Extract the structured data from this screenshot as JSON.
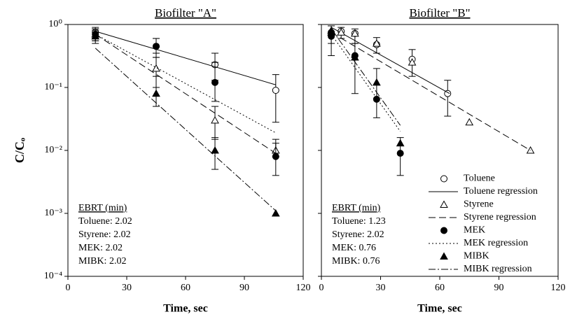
{
  "chart_data": [
    {
      "type": "scatter",
      "title": "Biofilter \"A\"",
      "xlabel": "Time, sec",
      "ylabel": "C/Cₒ",
      "xlim": [
        0,
        120
      ],
      "xticks": [
        0,
        30,
        60,
        90,
        120
      ],
      "ylim": [
        0.0001,
        1
      ],
      "log_y": true,
      "yticks": [
        {
          "value": 1,
          "label": "10⁰"
        },
        {
          "value": 0.1,
          "label": "10⁻¹"
        },
        {
          "value": 0.01,
          "label": "10⁻²"
        },
        {
          "value": 0.001,
          "label": "10⁻³"
        },
        {
          "value": 0.0001,
          "label": "10⁻⁴"
        }
      ],
      "series": [
        {
          "marker": "open-circle",
          "color": "#000000",
          "x": [
            14,
            45,
            75,
            106
          ],
          "values": [
            0.75,
            0.45,
            0.23,
            0.09
          ],
          "err_low": [
            0.6,
            0.3,
            0.13,
            0.028
          ],
          "err_high": [
            0.9,
            0.6,
            0.35,
            0.16
          ]
        },
        {
          "line": "solid",
          "color": "#000000",
          "x": [
            14,
            106
          ],
          "values": [
            0.78,
            0.11
          ]
        },
        {
          "marker": "open-triangle",
          "color": "#000000",
          "x": [
            14,
            45,
            75,
            106
          ],
          "values": [
            0.7,
            0.2,
            0.03,
            0.01
          ],
          "err_low": [
            0.55,
            0.1,
            0.015,
            0.008
          ],
          "err_high": [
            0.85,
            0.35,
            0.05,
            0.013
          ]
        },
        {
          "line": "dashed",
          "color": "#000000",
          "x": [
            14,
            106
          ],
          "values": [
            0.7,
            0.009
          ]
        },
        {
          "marker": "filled-circle",
          "color": "#000000",
          "x": [
            14,
            45,
            75,
            106
          ],
          "values": [
            0.7,
            0.45,
            0.12,
            0.008
          ],
          "err_low": [
            0.55,
            0.3,
            0.06,
            0.004
          ],
          "err_high": [
            0.85,
            0.6,
            0.25,
            0.015
          ]
        },
        {
          "line": "dotted",
          "color": "#000000",
          "x": [
            14,
            106
          ],
          "values": [
            0.7,
            0.019
          ]
        },
        {
          "marker": "filled-triangle",
          "color": "#000000",
          "x": [
            14,
            45,
            75,
            106
          ],
          "values": [
            0.65,
            0.08,
            0.01,
            0.001
          ],
          "err_low": [
            0.5,
            0.05,
            0.005,
            null
          ],
          "err_high": [
            0.8,
            0.15,
            0.016,
            null
          ]
        },
        {
          "line": "dash-dot",
          "color": "#000000",
          "x": [
            14,
            106
          ],
          "values": [
            0.42,
            0.0011
          ]
        }
      ],
      "annotation": {
        "title": "EBRT (min)",
        "lines": [
          "Toluene: 2.02",
          "Styrene: 2.02",
          "MEK: 2.02",
          "MIBK: 2.02"
        ]
      }
    },
    {
      "type": "scatter",
      "title": "Biofilter \"B\"",
      "xlabel": "Time, sec",
      "xlim": [
        0,
        120
      ],
      "xticks": [
        0,
        30,
        60,
        90,
        120
      ],
      "ylim": [
        0.0001,
        1
      ],
      "log_y": true,
      "legend": "lower right",
      "series": [
        {
          "name": "Toluene",
          "marker": "open-circle",
          "color": "#000000",
          "x": [
            5,
            10,
            17,
            28,
            46,
            64
          ],
          "values": [
            0.75,
            0.78,
            0.72,
            0.48,
            0.28,
            0.08
          ],
          "err_low": [
            0.5,
            0.6,
            0.5,
            0.35,
            0.15,
            0.035
          ],
          "err_high": [
            0.95,
            0.9,
            0.85,
            0.62,
            0.4,
            0.13
          ]
        },
        {
          "name": "Toluene regression",
          "line": "solid",
          "color": "#000000",
          "x": [
            5,
            65
          ],
          "values": [
            0.9,
            0.08
          ]
        },
        {
          "name": "Styrene",
          "marker": "open-triangle",
          "color": "#000000",
          "x": [
            5,
            10,
            17,
            28,
            46,
            75,
            106
          ],
          "values": [
            0.75,
            0.75,
            0.72,
            0.5,
            0.25,
            0.028,
            0.01
          ]
        },
        {
          "name": "Styrene regression",
          "line": "dashed",
          "color": "#000000",
          "x": [
            5,
            106
          ],
          "values": [
            0.75,
            0.01
          ]
        },
        {
          "name": "MEK",
          "marker": "filled-circle",
          "color": "#000000",
          "x": [
            5,
            17,
            28,
            40
          ],
          "values": [
            0.65,
            0.32,
            0.065,
            0.009
          ],
          "err_low": [
            0.32,
            0.08,
            0.033,
            0.004
          ],
          "err_high": [
            0.95,
            0.5,
            0.2,
            0.016
          ]
        },
        {
          "name": "MEK regression",
          "line": "dotted",
          "color": "#000000",
          "x": [
            5,
            40
          ],
          "values": [
            0.7,
            0.02
          ]
        },
        {
          "name": "MIBK",
          "marker": "filled-triangle",
          "color": "#000000",
          "x": [
            5,
            17,
            28,
            40
          ],
          "values": [
            0.8,
            0.3,
            0.12,
            0.013
          ]
        },
        {
          "name": "MIBK regression",
          "line": "dash-dot",
          "color": "#000000",
          "x": [
            5,
            40
          ],
          "values": [
            0.85,
            0.025
          ]
        }
      ],
      "annotation": {
        "title": "EBRT (min)",
        "lines": [
          "Toluene: 1.23",
          "Styrene: 2.02",
          "MEK: 0.76",
          "MIBK: 0.76"
        ]
      }
    }
  ]
}
